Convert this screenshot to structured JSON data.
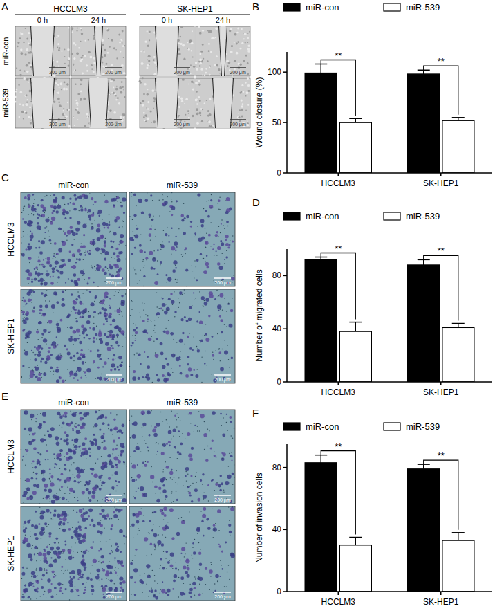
{
  "panel_labels": [
    "A",
    "B",
    "C",
    "D",
    "E",
    "F"
  ],
  "figure_panels": [
    {
      "type": "wound_images",
      "group_labels": [
        "HCCLM3",
        "SK-HEP1"
      ],
      "time_labels": [
        "0 h",
        "24 h"
      ],
      "row_labels": [
        "miR-con",
        "miR-539"
      ],
      "scale_bar": "200 μm"
    },
    {
      "type": "transwell_images",
      "column_labels": [
        "miR-con",
        "miR-539"
      ],
      "row_labels": [
        "HCCLM3",
        "SK-HEP1"
      ],
      "scale_bar": "200 μm"
    },
    {
      "type": "transwell_images",
      "column_labels": [
        "miR-con",
        "miR-539"
      ],
      "row_labels": [
        "HCCLM3",
        "SK-HEP1"
      ],
      "scale_bar": "200 μm"
    }
  ],
  "chart_data": [
    {
      "type": "bar",
      "y_label": "Wound closure (%)",
      "categories": [
        "HCCLM3",
        "SK-HEP1"
      ],
      "series": [
        {
          "name": "miR-con",
          "color": "#000000",
          "values": [
            99,
            98
          ],
          "errors": [
            9,
            4
          ]
        },
        {
          "name": "miR-539",
          "color": "#ffffff",
          "values": [
            50,
            52
          ],
          "errors": [
            4,
            3
          ]
        }
      ],
      "annotations": [
        "**",
        "**"
      ],
      "ylim": [
        0,
        120
      ],
      "yticks": [
        0,
        50,
        100
      ],
      "legend": "top",
      "grid": false
    },
    {
      "type": "bar",
      "y_label": "Number of migrated cells",
      "categories": [
        "HCCLM3",
        "SK-HEP1"
      ],
      "series": [
        {
          "name": "miR-con",
          "color": "#000000",
          "values": [
            92,
            88
          ],
          "errors": [
            2,
            4
          ]
        },
        {
          "name": "miR-539",
          "color": "#ffffff",
          "values": [
            38,
            41
          ],
          "errors": [
            7,
            3
          ]
        }
      ],
      "annotations": [
        "**",
        "**"
      ],
      "ylim": [
        0,
        100
      ],
      "yticks": [
        0,
        40,
        80
      ],
      "legend": "top",
      "grid": false
    },
    {
      "type": "bar",
      "y_label": "Number of invasion cells",
      "categories": [
        "HCCLM3",
        "SK-HEP1"
      ],
      "series": [
        {
          "name": "miR-con",
          "color": "#000000",
          "values": [
            83,
            79
          ],
          "errors": [
            5,
            3
          ]
        },
        {
          "name": "miR-539",
          "color": "#ffffff",
          "values": [
            30,
            33
          ],
          "errors": [
            5,
            5
          ]
        }
      ],
      "annotations": [
        "**",
        "**"
      ],
      "ylim": [
        0,
        95
      ],
      "yticks": [
        0,
        40,
        80
      ],
      "legend": "top",
      "grid": false
    }
  ]
}
